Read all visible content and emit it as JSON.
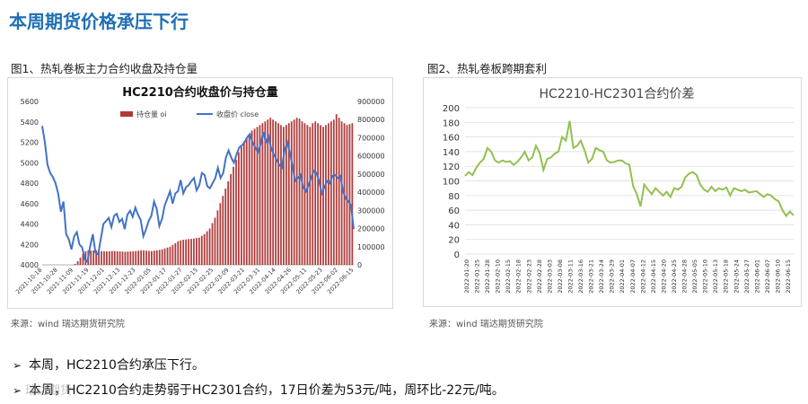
{
  "page": {
    "title": "本周期货价格承压下行",
    "fig1_caption": "图1、热轧卷板主力合约收盘及持仓量",
    "fig2_caption": "图2、热轧卷板跨期套利",
    "source1": "来源：wind   瑞达期货研究院",
    "source2": "来源：wind   瑞达期货研究院",
    "bullet1_arrow": "➢",
    "bullet1": "本周，HC2210合约承压下行。",
    "bullet2_arrow": "➢",
    "bullet2": "本周，HC2210合约走势弱于HC2301合约，17日价差为53元/吨，周环比-22元/吨。",
    "watermark": "瑞达期货"
  },
  "colors": {
    "title": "#1f6fb5",
    "bar": "#b03a3a",
    "line1": "#4472c4",
    "line2": "#92c050"
  },
  "chart_data": [
    {
      "type": "bar+line",
      "title": "HC2210合约收盘价与持仓量",
      "legend": [
        "持仓量 oi",
        "收盘价 close"
      ],
      "legend_position": "top-center",
      "y_left_ticks": [
        "5600",
        "5400",
        "5200",
        "5000",
        "4800",
        "4600",
        "4400",
        "4200",
        "4000"
      ],
      "y_right_ticks": [
        "900000",
        "800000",
        "700000",
        "600000",
        "500000",
        "400000",
        "300000",
        "200000",
        "100000",
        "0"
      ],
      "ylim_left": [
        4000,
        5600
      ],
      "ylim_right": [
        0,
        900000
      ],
      "x_ticks": [
        "2021-10-18",
        "2021-10-28",
        "2021-11-09",
        "2021-11-19",
        "2021-12-01",
        "2021-12-13",
        "2021-12-23",
        "2022-01-05",
        "2022-01-17",
        "2022-01-27",
        "2022-02-15",
        "2022-02-25",
        "2022-03-09",
        "2022-03-21",
        "2022-03-31",
        "2022-04-14",
        "2022-04-26",
        "2022-05-11",
        "2022-05-23",
        "2022-06-02",
        "2022-06-15"
      ],
      "close": [
        5360,
        5200,
        4980,
        4900,
        4860,
        4800,
        4700,
        4520,
        4620,
        4300,
        4250,
        4150,
        4280,
        4320,
        4200,
        4170,
        4050,
        4030,
        4180,
        4300,
        4120,
        4100,
        4250,
        4400,
        4430,
        4460,
        4370,
        4480,
        4500,
        4420,
        4450,
        4350,
        4490,
        4530,
        4470,
        4560,
        4490,
        4440,
        4280,
        4350,
        4430,
        4480,
        4620,
        4550,
        4380,
        4450,
        4580,
        4650,
        4720,
        4600,
        4700,
        4720,
        4830,
        4700,
        4760,
        4780,
        4820,
        4850,
        4730,
        4780,
        4900,
        4880,
        4770,
        4750,
        4800,
        4850,
        4950,
        4850,
        4900,
        5050,
        5120,
        5050,
        5000,
        5080,
        5150,
        5170,
        5200,
        5250,
        5280,
        5200,
        5150,
        5100,
        5180,
        5300,
        5200,
        5260,
        5140,
        5080,
        5030,
        4980,
        4950,
        5120,
        5200,
        5100,
        4970,
        4820,
        4850,
        4880,
        4760,
        4720,
        4780,
        4850,
        4920,
        4900,
        4820,
        4700,
        4760,
        4820,
        4800,
        4870,
        4880,
        4850,
        4870,
        4720,
        4650,
        4620,
        4580,
        4350
      ],
      "oi": [
        0,
        0,
        0,
        0,
        0,
        0,
        0,
        0,
        0,
        0,
        0,
        0,
        5000,
        20000,
        40000,
        60000,
        75000,
        80000,
        78000,
        79000,
        80000,
        78000,
        76000,
        75000,
        74000,
        75000,
        76000,
        76000,
        75000,
        74000,
        73000,
        72000,
        73000,
        74000,
        75000,
        76000,
        78000,
        80000,
        80000,
        78000,
        77000,
        76000,
        78000,
        80000,
        82000,
        85000,
        90000,
        95000,
        100000,
        110000,
        120000,
        130000,
        135000,
        138000,
        140000,
        142000,
        143000,
        145000,
        148000,
        150000,
        160000,
        170000,
        185000,
        200000,
        230000,
        260000,
        300000,
        340000,
        380000,
        420000,
        460000,
        500000,
        540000,
        580000,
        620000,
        650000,
        680000,
        700000,
        720000,
        740000,
        750000,
        760000,
        770000,
        780000,
        790000,
        800000,
        810000,
        800000,
        790000,
        780000,
        770000,
        760000,
        770000,
        780000,
        790000,
        800000,
        810000,
        805000,
        790000,
        780000,
        770000,
        760000,
        780000,
        790000,
        780000,
        770000,
        760000,
        770000,
        780000,
        790000,
        800000,
        830000,
        810000,
        790000,
        780000,
        770000,
        775000,
        780000
      ]
    },
    {
      "type": "line",
      "title": "HC2210-HC2301合约价差",
      "ylim": [
        0,
        200
      ],
      "y_ticks": [
        "200",
        "180",
        "160",
        "140",
        "120",
        "100",
        "80",
        "60",
        "40",
        "20",
        "0"
      ],
      "x_ticks": [
        "2022-01-20",
        "2022-01-25",
        "2022-01-28",
        "2022-02-10",
        "2022-02-15",
        "2022-02-18",
        "2022-02-23",
        "2022-02-28",
        "2022-03-03",
        "2022-03-08",
        "2022-03-11",
        "2022-03-16",
        "2022-03-21",
        "2022-03-24",
        "2022-03-29",
        "2022-04-01",
        "2022-04-07",
        "2022-04-12",
        "2022-04-15",
        "2022-04-20",
        "2022-04-25",
        "2022-04-28",
        "2022-05-05",
        "2022-05-10",
        "2022-05-13",
        "2022-05-18",
        "2022-05-24",
        "2022-05-27",
        "2022-06-01",
        "2022-06-07",
        "2022-06-10",
        "2022-06-15"
      ],
      "values": [
        107,
        112,
        108,
        118,
        125,
        130,
        145,
        140,
        128,
        125,
        128,
        126,
        127,
        122,
        126,
        132,
        140,
        128,
        132,
        148,
        138,
        115,
        130,
        132,
        137,
        140,
        160,
        155,
        182,
        145,
        148,
        155,
        142,
        125,
        130,
        145,
        142,
        140,
        128,
        125,
        126,
        128,
        128,
        124,
        122,
        93,
        82,
        65,
        95,
        88,
        82,
        90,
        85,
        80,
        85,
        78,
        90,
        88,
        92,
        105,
        110,
        112,
        108,
        95,
        88,
        85,
        92,
        86,
        90,
        88,
        91,
        80,
        90,
        88,
        86,
        88,
        84,
        85,
        86,
        82,
        78,
        82,
        80,
        75,
        72,
        60,
        52,
        58,
        53
      ]
    }
  ]
}
